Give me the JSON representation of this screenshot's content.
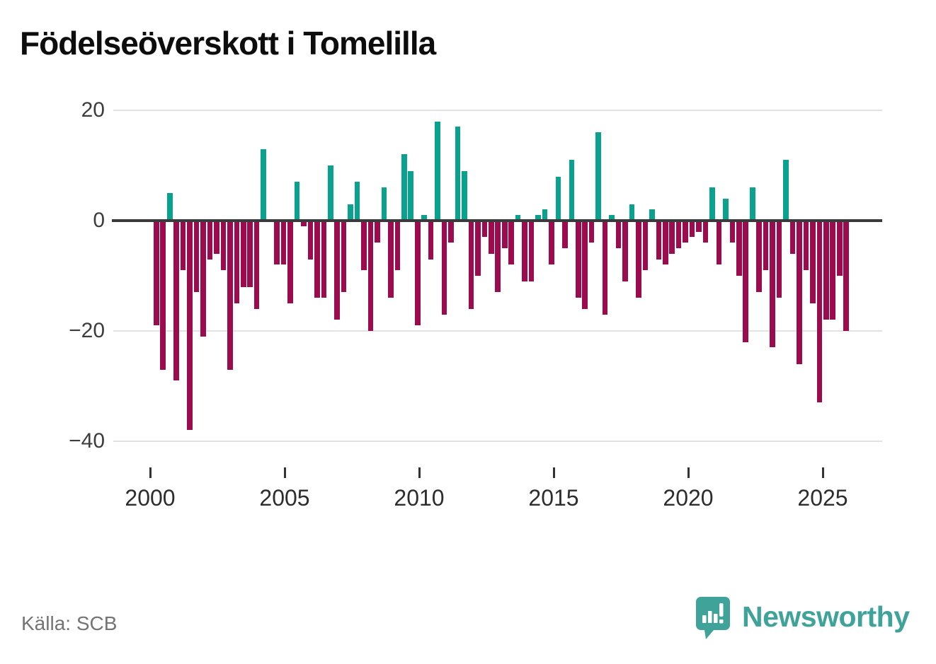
{
  "title": "Födelseöverskott i Tomelilla",
  "source": "Källa: SCB",
  "branding": {
    "name": "Newsworthy",
    "icon": "speech-bubble-bar-chart-icon"
  },
  "colors": {
    "positive_bar": "#0aa18f",
    "negative_bar": "#9b0b4d",
    "zero_line": "#3a3a3a",
    "gridline": "#e2e2e2",
    "axis_text": "#3d3d3d",
    "title_text": "#0d0d0d",
    "source_text": "#747474",
    "brand_teal": "#3fa39a"
  },
  "chart_data": {
    "type": "bar",
    "title": "Födelseöverskott i Tomelilla",
    "frequency": "quarterly",
    "period_start": "2000Q1",
    "period_end": "2025Q4",
    "grid": true,
    "legend": false,
    "y_axis": {
      "tick_values": [
        20,
        0,
        -20,
        -40
      ],
      "tick_labels": [
        "20",
        "0",
        "−20",
        "−40"
      ],
      "range": [
        -42,
        22
      ]
    },
    "x_axis": {
      "tick_values": [
        2000,
        2005,
        2010,
        2015,
        2020,
        2025
      ],
      "tick_labels": [
        "2000",
        "2005",
        "2010",
        "2015",
        "2020",
        "2025"
      ]
    },
    "series": [
      {
        "name": "Födelseöverskott",
        "start_year": 2000,
        "values": [
          -19,
          -27,
          5,
          -29,
          -9,
          -38,
          -13,
          -21,
          -7,
          -6,
          -9,
          -27,
          -15,
          -12,
          -12,
          -16,
          13,
          0,
          -8,
          -8,
          -15,
          7,
          -1,
          -7,
          -14,
          -14,
          10,
          -18,
          -13,
          3,
          7,
          -9,
          -20,
          -4,
          6,
          -14,
          -9,
          12,
          9,
          -19,
          1,
          -7,
          18,
          -17,
          -4,
          17,
          9,
          -16,
          -10,
          -3,
          -6,
          -13,
          -5,
          -8,
          1,
          -11,
          -11,
          1,
          2,
          -8,
          8,
          -5,
          11,
          -14,
          -16,
          -4,
          16,
          -17,
          1,
          -5,
          -11,
          3,
          -14,
          -9,
          2,
          -7,
          -8,
          -6,
          -5,
          -4,
          -3,
          -2,
          -4,
          6,
          -8,
          4,
          -4,
          -10,
          -22,
          6,
          -13,
          -9,
          -23,
          -14,
          11,
          -6,
          -26,
          -9,
          -15,
          -33,
          -18,
          -18,
          -10,
          -20
        ]
      }
    ]
  }
}
